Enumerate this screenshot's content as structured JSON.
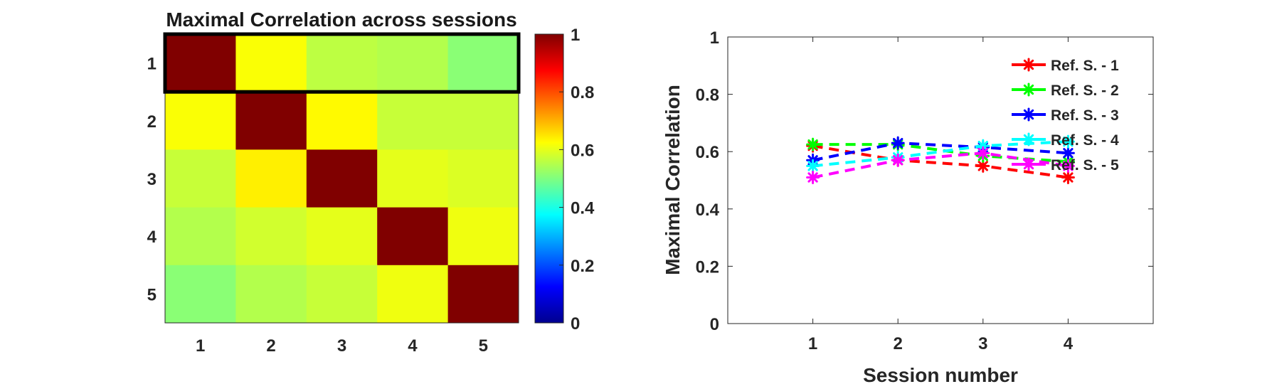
{
  "chart_data": [
    {
      "type": "heatmap",
      "title": "Maximal Correlation across sessions",
      "row_labels": [
        "1",
        "2",
        "3",
        "4",
        "5"
      ],
      "col_labels": [
        "1",
        "2",
        "3",
        "4",
        "5"
      ],
      "values": [
        [
          1.0,
          0.62,
          0.56,
          0.55,
          0.51
        ],
        [
          0.62,
          1.0,
          0.63,
          0.57,
          0.57
        ],
        [
          0.57,
          0.64,
          1.0,
          0.6,
          0.59
        ],
        [
          0.55,
          0.58,
          0.6,
          1.0,
          0.61
        ],
        [
          0.51,
          0.55,
          0.57,
          0.61,
          1.0
        ]
      ],
      "highlighted_row": 0,
      "colorbar": {
        "colormap": "jet",
        "range": [
          0,
          1
        ],
        "ticks": [
          "0",
          "0.2",
          "0.4",
          "0.6",
          "0.8",
          "1"
        ]
      }
    },
    {
      "type": "line",
      "xlabel": "Session number",
      "ylabel": "Maximal Correlation",
      "x": [
        1,
        2,
        3,
        4
      ],
      "xticks": [
        "1",
        "2",
        "3",
        "4"
      ],
      "yticks": [
        "0",
        "0.2",
        "0.4",
        "0.6",
        "0.8",
        "1"
      ],
      "xlim": [
        0,
        5
      ],
      "ylim": [
        0,
        1
      ],
      "legend_position": "top-right",
      "series": [
        {
          "name": "Ref. S. - 1",
          "color": "#ff0000",
          "values": [
            0.62,
            0.57,
            0.55,
            0.51
          ]
        },
        {
          "name": "Ref. S. - 2",
          "color": "#00ff00",
          "values": [
            0.625,
            0.625,
            0.585,
            0.565
          ]
        },
        {
          "name": "Ref. S. - 3",
          "color": "#0000ff",
          "values": [
            0.57,
            0.63,
            0.615,
            0.595
          ]
        },
        {
          "name": "Ref. S. - 4",
          "color": "#00ffff",
          "values": [
            0.55,
            0.58,
            0.62,
            0.635
          ]
        },
        {
          "name": "Ref. S. - 5",
          "color": "#ff00ff",
          "values": [
            0.51,
            0.57,
            0.595,
            0.55
          ]
        }
      ]
    }
  ]
}
